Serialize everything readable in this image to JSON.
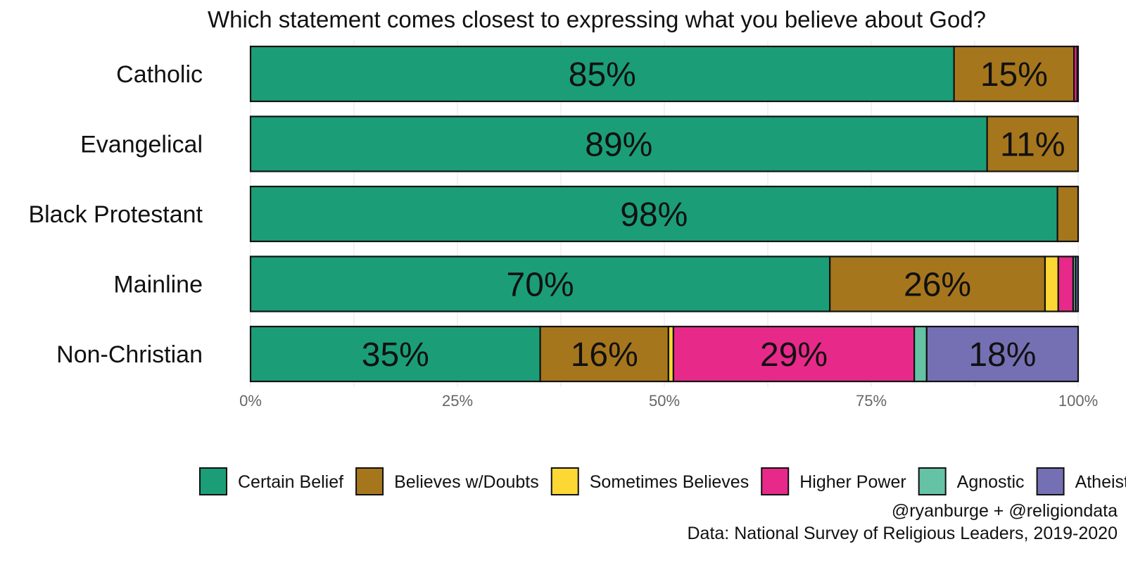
{
  "chart_data": {
    "type": "bar",
    "orientation": "horizontal",
    "stacked": true,
    "title": "Which statement comes closest to expressing what you believe about God?",
    "categories": [
      "Catholic",
      "Evangelical",
      "Black Protestant",
      "Mainline",
      "Non-Christian"
    ],
    "series": [
      {
        "name": "Certain Belief",
        "color": "#1b9e77",
        "values": [
          85,
          89,
          97.5,
          70,
          35
        ],
        "labels": [
          "85%",
          "89%",
          "98%",
          "70%",
          "35%"
        ]
      },
      {
        "name": "Believes w/Doubts",
        "color": "#a6761d",
        "values": [
          14.5,
          11,
          2.5,
          26,
          15.5
        ],
        "labels": [
          "15%",
          "11%",
          "",
          "26%",
          "16%"
        ]
      },
      {
        "name": "Sometimes Believes",
        "color": "#fdd835",
        "values": [
          0,
          0,
          0,
          1.6,
          0.6
        ],
        "labels": [
          "",
          "",
          "",
          "",
          ""
        ]
      },
      {
        "name": "Higher Power",
        "color": "#e7298a",
        "values": [
          0.4,
          0,
          0,
          1.8,
          29.1
        ],
        "labels": [
          "",
          "",
          "",
          "",
          "29%"
        ]
      },
      {
        "name": "Agnostic",
        "color": "#66c2a5",
        "values": [
          0.1,
          0,
          0,
          0.3,
          1.5
        ],
        "labels": [
          "",
          "",
          "",
          "",
          ""
        ]
      },
      {
        "name": "Atheist",
        "color": "#7570b3",
        "values": [
          0,
          0,
          0,
          0.3,
          18.3
        ],
        "labels": [
          "",
          "",
          "",
          "",
          "18%"
        ]
      }
    ],
    "xlim": [
      0,
      100
    ],
    "x_ticks": [
      0,
      25,
      50,
      75,
      100
    ],
    "x_tick_labels": [
      "0%",
      "25%",
      "50%",
      "75%",
      "100%"
    ],
    "grid": true,
    "legend_position": "bottom",
    "caption": [
      "@ryanburge + @religiondata",
      "Data: National Survey of Religious Leaders, 2019-2020"
    ]
  }
}
